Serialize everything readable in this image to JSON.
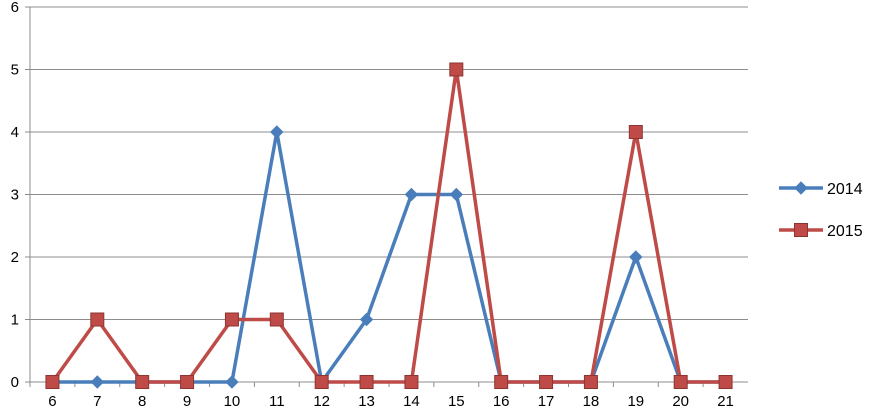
{
  "chart_data": {
    "type": "line",
    "title": "",
    "xlabel": "",
    "ylabel": "",
    "categories": [
      "6",
      "7",
      "8",
      "9",
      "10",
      "11",
      "12",
      "13",
      "14",
      "15",
      "16",
      "17",
      "18",
      "19",
      "20",
      "21"
    ],
    "ylim": [
      0,
      6
    ],
    "yticks": [
      0,
      1,
      2,
      3,
      4,
      5,
      6
    ],
    "grid": true,
    "legend_position": "right",
    "series": [
      {
        "name": "2014",
        "color": "#4a7ebb",
        "marker": "diamond",
        "values": [
          0,
          0,
          0,
          0,
          0,
          4,
          0,
          1,
          3,
          3,
          0,
          0,
          0,
          2,
          0,
          0
        ]
      },
      {
        "name": "2015",
        "color": "#be4b48",
        "marker": "square",
        "values": [
          0,
          1,
          0,
          0,
          1,
          1,
          0,
          0,
          0,
          5,
          0,
          0,
          0,
          4,
          0,
          0
        ]
      }
    ]
  }
}
